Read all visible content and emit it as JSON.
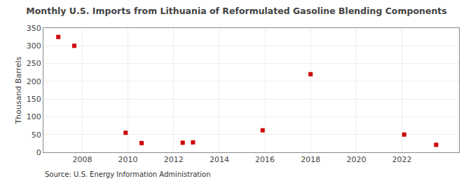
{
  "chart_data": {
    "type": "scatter",
    "title": "Monthly U.S. Imports from Lithuania of Reformulated Gasoline Blending Components",
    "ylabel": "Thousand Barrels",
    "annotations": [
      "Source: U.S. Energy Information Administration"
    ],
    "x": [
      2006.95,
      2007.65,
      2009.9,
      2010.6,
      2012.4,
      2012.85,
      2015.9,
      2018.0,
      2022.1,
      2023.5
    ],
    "values": [
      325,
      300,
      55,
      26,
      27,
      28,
      62,
      220,
      50,
      21
    ],
    "color": "#cc0000",
    "marker": "square",
    "xlim": [
      2006.3,
      2024.5
    ],
    "xticks": [
      2008,
      2010,
      2012,
      2014,
      2016,
      2018,
      2020,
      2022
    ],
    "ylim": [
      0,
      350
    ],
    "yticks": [
      0,
      50,
      100,
      150,
      200,
      250,
      300,
      350
    ],
    "grid": true
  }
}
